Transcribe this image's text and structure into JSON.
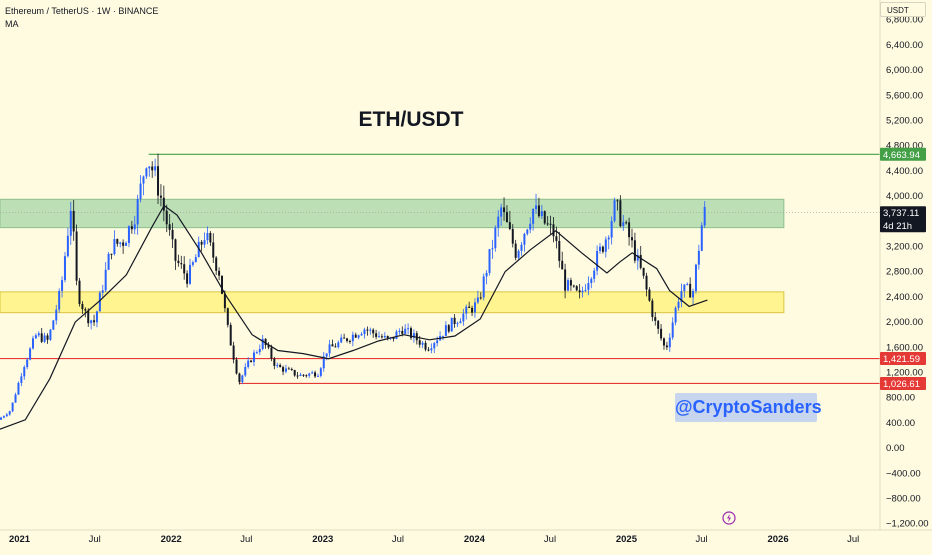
{
  "header": {
    "symbol_line": "Ethereum / TetherUS · 1W · BINANCE",
    "indicator_label": "MA",
    "currency_button": "USDT"
  },
  "watermark": {
    "text": "@CryptoSanders"
  },
  "logo_icon": "tradingview-logo-icon",
  "colors": {
    "background": "#fffbe0",
    "up": "#2962ff",
    "down": "#131722",
    "ma": "#131722",
    "resistance_zone": "#a5d6a7",
    "support_zone": "#fff176",
    "green_level": "#43a047",
    "red_level": "#e53935"
  },
  "chart_data": {
    "type": "candlestick",
    "title": "ETH/USDT",
    "symbol": "Ethereum / TetherUS",
    "interval": "1W",
    "exchange": "BINANCE",
    "y_tick_labels": [
      "6,800.00",
      "6,400.00",
      "6,000.00",
      "5,600.00",
      "5,200.00",
      "4,800.00",
      "4,400.00",
      "4,000.00",
      "3,600.00",
      "3,200.00",
      "2,800.00",
      "2,400.00",
      "2,000.00",
      "1,600.00",
      "1,200.00",
      "800.00",
      "400.00",
      "0.00",
      "−400.00",
      "−800.00",
      "−1,200.00"
    ],
    "y_tick_values": [
      6800,
      6400,
      6000,
      5600,
      5200,
      4800,
      4400,
      4000,
      3600,
      3200,
      2800,
      2400,
      2000,
      1600,
      1200,
      800,
      400,
      0,
      -400,
      -800,
      -1200
    ],
    "ylim": [
      -1300,
      7050
    ],
    "xlim": [
      "2020-11-15",
      "2026-08-20"
    ],
    "x_ticks": [
      {
        "date": "2021-01-01",
        "label": "2021",
        "bold": true
      },
      {
        "date": "2021-07-01",
        "label": "Jul",
        "bold": false
      },
      {
        "date": "2022-01-01",
        "label": "2022",
        "bold": true
      },
      {
        "date": "2022-07-01",
        "label": "Jul",
        "bold": false
      },
      {
        "date": "2023-01-01",
        "label": "2023",
        "bold": true
      },
      {
        "date": "2023-07-01",
        "label": "Jul",
        "bold": false
      },
      {
        "date": "2024-01-01",
        "label": "2024",
        "bold": true
      },
      {
        "date": "2024-07-01",
        "label": "Jul",
        "bold": false
      },
      {
        "date": "2025-01-01",
        "label": "2025",
        "bold": true
      },
      {
        "date": "2025-07-01",
        "label": "Jul",
        "bold": false
      },
      {
        "date": "2026-01-01",
        "label": "2026",
        "bold": true
      },
      {
        "date": "2026-07-01",
        "label": "Jul",
        "bold": false
      }
    ],
    "zones": [
      {
        "name": "resistance",
        "from": 3500,
        "to": 3950,
        "start": "2020-11-15",
        "end": "2026-01-15"
      },
      {
        "name": "support",
        "from": 2150,
        "to": 2480,
        "start": "2020-11-15",
        "end": "2026-01-15"
      }
    ],
    "levels": [
      {
        "value": 4663.94,
        "label": "4,663.94",
        "color": "green",
        "start": "2021-11-08"
      },
      {
        "value": 1421.59,
        "label": "1,421.59",
        "color": "red",
        "start": "2020-11-15"
      },
      {
        "value": 1026.61,
        "label": "1,026.61",
        "color": "red",
        "start": "2022-06-13"
      }
    ],
    "last_price": {
      "value": 3737.11,
      "label": "3,737.11",
      "countdown": "4d 21h"
    },
    "ma_path": [
      [
        "2020-11-15",
        300
      ],
      [
        "2021-01-15",
        450
      ],
      [
        "2021-03-15",
        1100
      ],
      [
        "2021-05-15",
        2000
      ],
      [
        "2021-07-15",
        2350
      ],
      [
        "2021-09-15",
        2750
      ],
      [
        "2021-11-15",
        3500
      ],
      [
        "2021-12-15",
        3850
      ],
      [
        "2022-01-15",
        3700
      ],
      [
        "2022-03-15",
        3100
      ],
      [
        "2022-05-15",
        2400
      ],
      [
        "2022-07-15",
        1800
      ],
      [
        "2022-09-15",
        1550
      ],
      [
        "2022-11-15",
        1500
      ],
      [
        "2023-01-15",
        1420
      ],
      [
        "2023-03-15",
        1550
      ],
      [
        "2023-05-15",
        1700
      ],
      [
        "2023-07-15",
        1800
      ],
      [
        "2023-09-15",
        1720
      ],
      [
        "2023-11-15",
        1780
      ],
      [
        "2024-01-15",
        2050
      ],
      [
        "2024-03-15",
        2800
      ],
      [
        "2024-05-15",
        3150
      ],
      [
        "2024-07-15",
        3450
      ],
      [
        "2024-09-15",
        3100
      ],
      [
        "2024-11-15",
        2780
      ],
      [
        "2024-12-15",
        2950
      ],
      [
        "2025-01-15",
        3100
      ],
      [
        "2025-03-15",
        2850
      ],
      [
        "2025-04-15",
        2500
      ],
      [
        "2025-06-01",
        2250
      ],
      [
        "2025-07-15",
        2350
      ]
    ],
    "price_path": [
      [
        "2020-11-15",
        450
      ],
      [
        "2020-12-15",
        600
      ],
      [
        "2021-01-15",
        1300
      ],
      [
        "2021-02-15",
        1800
      ],
      [
        "2021-03-15",
        1700
      ],
      [
        "2021-04-15",
        2500
      ],
      [
        "2021-05-10",
        3900
      ],
      [
        "2021-05-24",
        2500
      ],
      [
        "2021-06-15",
        2100
      ],
      [
        "2021-07-05",
        2000
      ],
      [
        "2021-08-15",
        3200
      ],
      [
        "2021-09-15",
        3300
      ],
      [
        "2021-10-15",
        3800
      ],
      [
        "2021-11-08",
        4650
      ],
      [
        "2021-11-29",
        4300
      ],
      [
        "2021-12-15",
        3900
      ],
      [
        "2022-01-15",
        3000
      ],
      [
        "2022-02-15",
        2700
      ],
      [
        "2022-03-28",
        3400
      ],
      [
        "2022-05-01",
        2800
      ],
      [
        "2022-05-20",
        1950
      ],
      [
        "2022-06-18",
        1050
      ],
      [
        "2022-07-15",
        1400
      ],
      [
        "2022-08-15",
        1700
      ],
      [
        "2022-09-15",
        1300
      ],
      [
        "2022-11-10",
        1150
      ],
      [
        "2022-12-25",
        1200
      ],
      [
        "2023-01-15",
        1550
      ],
      [
        "2023-04-15",
        1900
      ],
      [
        "2023-06-15",
        1700
      ],
      [
        "2023-07-15",
        1900
      ],
      [
        "2023-09-15",
        1600
      ],
      [
        "2023-11-15",
        2000
      ],
      [
        "2024-01-15",
        2300
      ],
      [
        "2024-03-10",
        3800
      ],
      [
        "2024-04-15",
        3100
      ],
      [
        "2024-05-25",
        3800
      ],
      [
        "2024-07-15",
        3400
      ],
      [
        "2024-08-10",
        2600
      ],
      [
        "2024-09-15",
        2400
      ],
      [
        "2024-11-15",
        3300
      ],
      [
        "2024-12-10",
        3850
      ],
      [
        "2025-01-15",
        3300
      ],
      [
        "2025-02-15",
        2700
      ],
      [
        "2025-03-15",
        2000
      ],
      [
        "2025-04-10",
        1550
      ],
      [
        "2025-05-15",
        2500
      ],
      [
        "2025-06-15",
        2500
      ],
      [
        "2025-07-10",
        3737
      ]
    ]
  }
}
